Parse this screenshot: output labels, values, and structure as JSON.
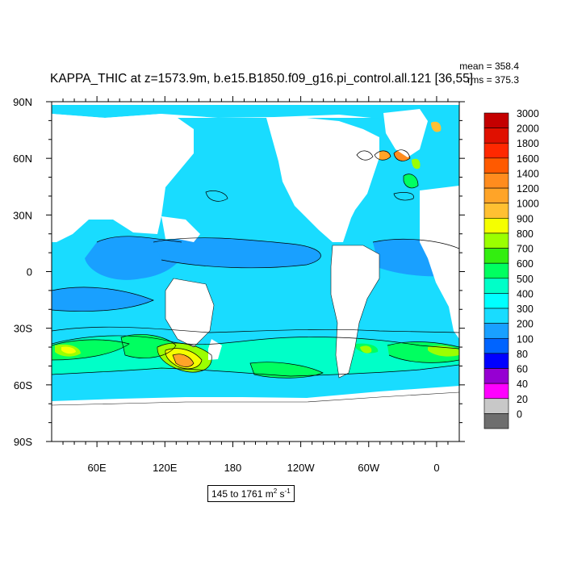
{
  "title": "KAPPA_THIC at z=1573.9m, b.e15.B1850.f09_g16.pi_control.all.121 [36,55]",
  "stats": {
    "mean": "mean = 358.4",
    "rms": "rms = 375.3"
  },
  "range": {
    "text": "145 to 1761 m",
    "unit_sup1": "2",
    "unit_mid": " s",
    "unit_sup2": "-1"
  },
  "chart_data": {
    "type": "heatmap",
    "variable": "KAPPA_THIC",
    "projection": "cylindrical-equidistant",
    "lon_range": [
      20,
      380
    ],
    "lat_range": [
      -90,
      90
    ],
    "x_tick_labels": [
      "60E",
      "120E",
      "180",
      "120W",
      "60W",
      "0"
    ],
    "y_tick_labels": [
      "90N",
      "60N",
      "30N",
      "0",
      "30S",
      "60S",
      "90S"
    ],
    "colorbar": {
      "levels": [
        "3000",
        "2000",
        "1800",
        "1600",
        "1400",
        "1200",
        "1000",
        "900",
        "800",
        "700",
        "600",
        "500",
        "400",
        "300",
        "200",
        "100",
        "80",
        "60",
        "40",
        "20",
        "0"
      ],
      "colors": [
        "#c40000",
        "#e01000",
        "#ff2800",
        "#ff5a00",
        "#ff8c1e",
        "#ffa428",
        "#ffc032",
        "#f5ff00",
        "#9bff00",
        "#33ee10",
        "#00ff60",
        "#00ffc8",
        "#00ffff",
        "#19dcff",
        "#19a0ff",
        "#0064ff",
        "#0000ff",
        "#9600d2",
        "#ff00ff",
        "#c8c8c8",
        "#6e6e6e"
      ]
    }
  }
}
